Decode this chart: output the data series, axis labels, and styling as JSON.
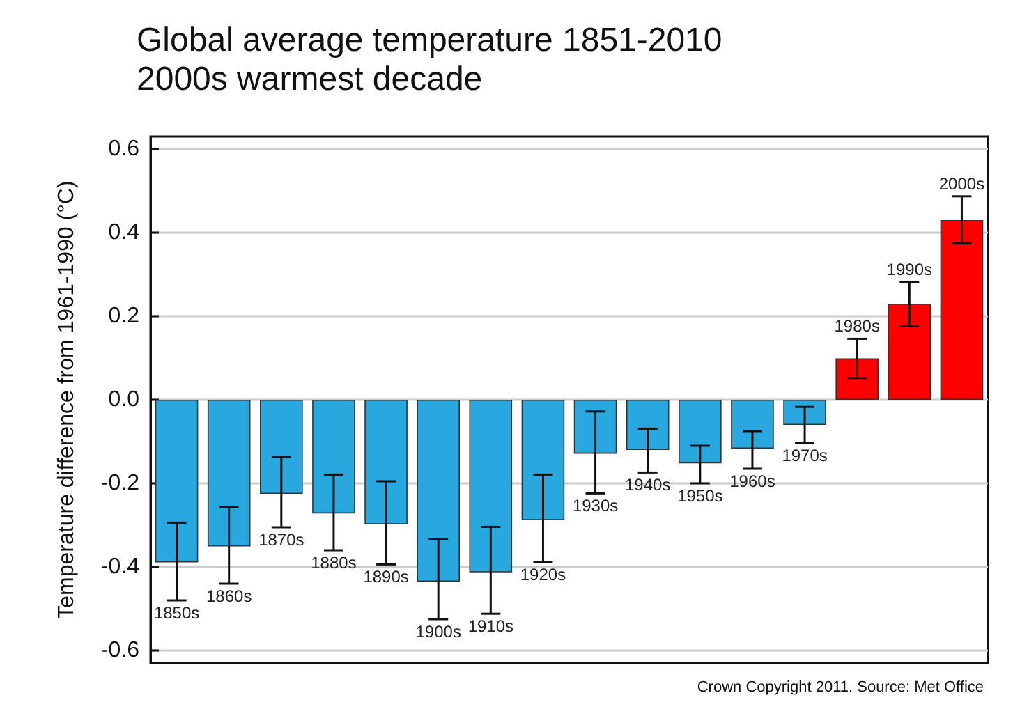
{
  "chart_data": {
    "type": "bar",
    "title": "Global average temperature 1851-2010",
    "subtitle": "2000s warmest decade",
    "ylabel": "Temperature difference from 1961-1990 (°C)",
    "categories": [
      "1850s",
      "1860s",
      "1870s",
      "1880s",
      "1890s",
      "1900s",
      "1910s",
      "1920s",
      "1930s",
      "1940s",
      "1950s",
      "1960s",
      "1970s",
      "1980s",
      "1990s",
      "2000s"
    ],
    "values": [
      -0.389,
      -0.351,
      -0.225,
      -0.272,
      -0.298,
      -0.435,
      -0.413,
      -0.288,
      -0.129,
      -0.12,
      -0.152,
      -0.117,
      -0.06,
      0.099,
      0.23,
      0.43
    ],
    "colors": [
      "#29a8e0",
      "#29a8e0",
      "#29a8e0",
      "#29a8e0",
      "#29a8e0",
      "#29a8e0",
      "#29a8e0",
      "#29a8e0",
      "#29a8e0",
      "#29a8e0",
      "#29a8e0",
      "#29a8e0",
      "#29a8e0",
      "#ff0000",
      "#ff0000",
      "#ff0000"
    ],
    "errors": [
      [
        -0.48,
        -0.294
      ],
      [
        -0.44,
        -0.257
      ],
      [
        -0.305,
        -0.137
      ],
      [
        -0.36,
        -0.179
      ],
      [
        -0.394,
        -0.195
      ],
      [
        -0.525,
        -0.334
      ],
      [
        -0.512,
        -0.304
      ],
      [
        -0.389,
        -0.179
      ],
      [
        -0.224,
        -0.028
      ],
      [
        -0.174,
        -0.069
      ],
      [
        -0.2,
        -0.11
      ],
      [
        -0.165,
        -0.075
      ],
      [
        -0.104,
        -0.017
      ],
      [
        0.052,
        0.146
      ],
      [
        0.176,
        0.282
      ],
      [
        0.374,
        0.487
      ]
    ],
    "ylim": [
      -0.63,
      0.63
    ],
    "yticks": [
      -0.6,
      -0.4,
      -0.2,
      {
        "value": 0,
        "label": "0.0"
      },
      0.2,
      0.4,
      0.6
    ],
    "grid": "y",
    "tick_labels": "y",
    "annotations": [
      "Crown Copyright 2011. Source: Met Office"
    ]
  }
}
